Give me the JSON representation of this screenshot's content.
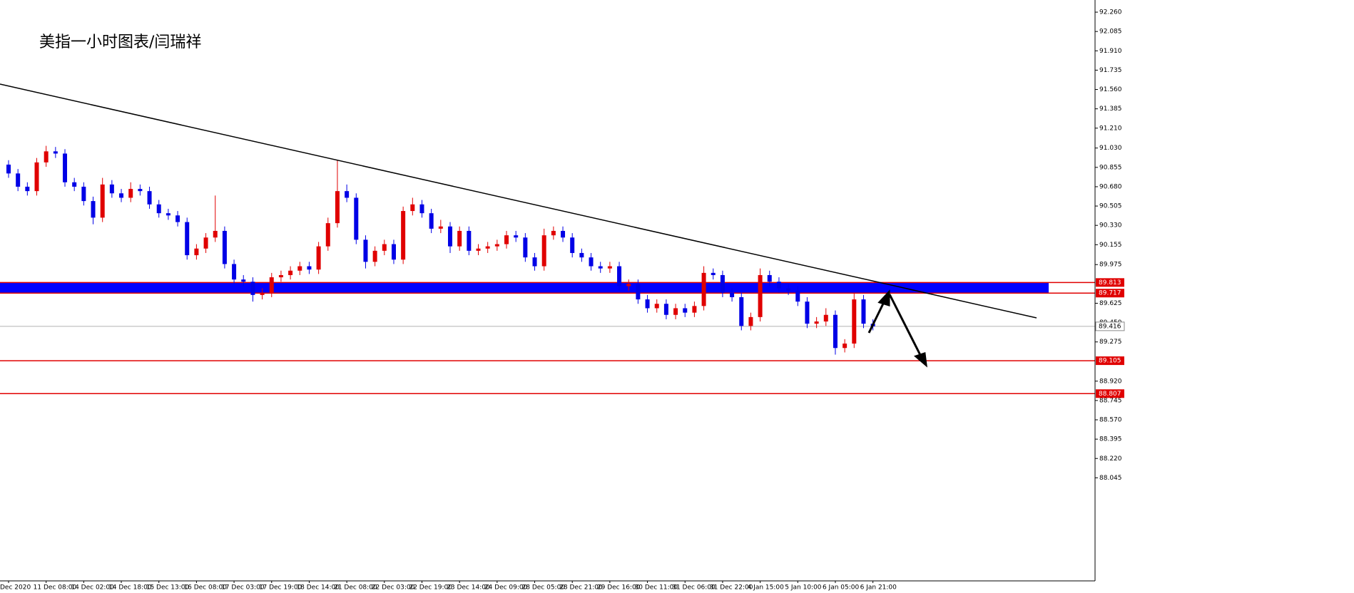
{
  "chart_data": {
    "type": "candlestick",
    "title": "美指一小时图表/闫瑞祥",
    "categories": [
      "Dec 2020",
      null,
      null,
      null,
      "11 Dec 08:00",
      null,
      null,
      null,
      "14 Dec 02:00",
      null,
      null,
      null,
      "14 Dec 18:00",
      null,
      null,
      null,
      "15 Dec 13:00",
      null,
      null,
      null,
      "16 Dec 08:00",
      null,
      null,
      null,
      "17 Dec 03:00",
      null,
      null,
      null,
      "17 Dec 19:00",
      null,
      null,
      null,
      "18 Dec 14:00",
      null,
      null,
      null,
      "21 Dec 08:00",
      null,
      null,
      null,
      "22 Dec 03:00",
      null,
      null,
      null,
      "22 Dec 19:00",
      null,
      null,
      null,
      "23 Dec 14:00",
      null,
      null,
      null,
      "24 Dec 09:00",
      null,
      null,
      null,
      "28 Dec 05:00",
      null,
      null,
      null,
      "28 Dec 21:00",
      null,
      null,
      null,
      "29 Dec 16:00",
      null,
      null,
      null,
      "30 Dec 11:00",
      null,
      null,
      null,
      "31 Dec 06:00",
      null,
      null,
      null,
      "31 Dec 22:00",
      null,
      null,
      null,
      "4 Jan 15:00",
      null,
      null,
      null,
      "5 Jan 10:00",
      null,
      null,
      null,
      "6 Jan 05:00",
      null,
      null,
      null,
      "6 Jan 21:00"
    ],
    "open": [
      90.88,
      90.8,
      90.68,
      90.64,
      90.9,
      91.0,
      90.98,
      90.72,
      90.68,
      90.55,
      90.4,
      90.7,
      90.62,
      90.58,
      90.66,
      90.64,
      90.52,
      90.44,
      90.42,
      90.36,
      90.06,
      90.12,
      90.22,
      90.28,
      89.98,
      89.84,
      89.82,
      89.7,
      89.72,
      89.86,
      89.88,
      89.92,
      89.96,
      89.93,
      90.14,
      90.35,
      90.64,
      90.58,
      90.2,
      90.0,
      90.1,
      90.16,
      90.02,
      90.46,
      90.52,
      90.44,
      90.3,
      90.32,
      90.14,
      90.28,
      90.1,
      90.12,
      90.14,
      90.16,
      90.24,
      90.22,
      90.04,
      89.96,
      90.24,
      90.28,
      90.22,
      90.08,
      90.04,
      89.96,
      89.94,
      89.96,
      89.78,
      89.8,
      89.66,
      89.58,
      89.62,
      89.52,
      89.58,
      89.54,
      89.6,
      89.9,
      89.88,
      89.72,
      89.68,
      89.42,
      89.5,
      89.88,
      89.82,
      89.76,
      89.74,
      89.64,
      89.44,
      89.46,
      89.52,
      89.22,
      89.26,
      89.66,
      89.44
    ],
    "high": [
      90.92,
      90.84,
      90.72,
      90.94,
      91.05,
      91.04,
      91.02,
      90.76,
      90.72,
      90.59,
      90.76,
      90.74,
      90.66,
      90.72,
      90.7,
      90.68,
      90.56,
      90.48,
      90.46,
      90.4,
      90.16,
      90.26,
      90.6,
      90.32,
      90.02,
      89.88,
      89.86,
      89.76,
      89.9,
      89.92,
      89.96,
      90.0,
      90.0,
      90.18,
      90.4,
      90.92,
      90.7,
      90.62,
      90.24,
      90.14,
      90.2,
      90.2,
      90.5,
      90.58,
      90.56,
      90.48,
      90.38,
      90.36,
      90.32,
      90.32,
      90.16,
      90.18,
      90.2,
      90.28,
      90.28,
      90.26,
      90.08,
      90.3,
      90.32,
      90.32,
      90.26,
      90.12,
      90.08,
      90.0,
      90.0,
      90.0,
      89.84,
      89.84,
      89.7,
      89.66,
      89.66,
      89.62,
      89.62,
      89.64,
      89.96,
      89.94,
      89.92,
      89.76,
      89.72,
      89.54,
      89.94,
      89.92,
      89.86,
      89.8,
      89.78,
      89.68,
      89.5,
      89.58,
      89.56,
      89.3,
      89.72,
      89.7,
      89.48
    ],
    "low": [
      90.76,
      90.64,
      90.6,
      90.6,
      90.86,
      90.94,
      90.68,
      90.64,
      90.51,
      90.34,
      90.36,
      90.58,
      90.54,
      90.54,
      90.6,
      90.48,
      90.4,
      90.38,
      90.32,
      90.02,
      90.02,
      90.08,
      90.18,
      89.94,
      89.8,
      89.78,
      89.64,
      89.66,
      89.68,
      89.82,
      89.84,
      89.88,
      89.89,
      89.89,
      90.1,
      90.31,
      90.54,
      90.16,
      89.94,
      89.96,
      90.06,
      89.98,
      89.98,
      90.42,
      90.4,
      90.26,
      90.26,
      90.08,
      90.1,
      90.06,
      90.06,
      90.08,
      90.1,
      90.12,
      90.18,
      90.0,
      89.92,
      89.92,
      90.2,
      90.18,
      90.04,
      90.0,
      89.92,
      89.9,
      89.9,
      89.74,
      89.74,
      89.62,
      89.54,
      89.54,
      89.48,
      89.48,
      89.5,
      89.5,
      89.56,
      89.84,
      89.68,
      89.64,
      89.38,
      89.38,
      89.46,
      89.78,
      89.72,
      89.7,
      89.6,
      89.4,
      89.4,
      89.42,
      89.16,
      89.18,
      89.22,
      89.4,
      89.38
    ],
    "close": [
      90.8,
      90.68,
      90.64,
      90.9,
      91.0,
      90.98,
      90.72,
      90.68,
      90.55,
      90.4,
      90.7,
      90.62,
      90.58,
      90.66,
      90.64,
      90.52,
      90.44,
      90.42,
      90.36,
      90.06,
      90.12,
      90.22,
      90.28,
      89.98,
      89.84,
      89.82,
      89.7,
      89.72,
      89.86,
      89.88,
      89.92,
      89.96,
      89.93,
      90.14,
      90.35,
      90.64,
      90.58,
      90.2,
      90.0,
      90.1,
      90.16,
      90.02,
      90.46,
      90.52,
      90.44,
      90.3,
      90.32,
      90.14,
      90.28,
      90.1,
      90.12,
      90.14,
      90.16,
      90.24,
      90.22,
      90.04,
      89.96,
      90.24,
      90.28,
      90.22,
      90.08,
      90.04,
      89.96,
      89.94,
      89.96,
      89.78,
      89.8,
      89.66,
      89.58,
      89.62,
      89.52,
      89.58,
      89.54,
      89.6,
      89.9,
      89.88,
      89.72,
      89.68,
      89.42,
      89.5,
      89.88,
      89.82,
      89.76,
      89.74,
      89.64,
      89.44,
      89.46,
      89.52,
      89.22,
      89.26,
      89.66,
      89.44,
      89.416
    ],
    "up_color": "#e00000",
    "down_color": "#0000e6",
    "ylim": [
      87.112,
      92.37
    ],
    "yticks": [
      {
        "value": 92.26,
        "label": "92.260"
      },
      {
        "value": 92.085,
        "label": "92.085"
      },
      {
        "value": 91.91,
        "label": "91.910"
      },
      {
        "value": 91.735,
        "label": "91.735"
      },
      {
        "value": 91.56,
        "label": "91.560"
      },
      {
        "value": 91.385,
        "label": "91.385"
      },
      {
        "value": 91.21,
        "label": "91.210"
      },
      {
        "value": 91.03,
        "label": "91.030"
      },
      {
        "value": 90.855,
        "label": "90.855"
      },
      {
        "value": 90.68,
        "label": "90.680"
      },
      {
        "value": 90.505,
        "label": "90.505"
      },
      {
        "value": 90.33,
        "label": "90.330"
      },
      {
        "value": 90.155,
        "label": "90.155"
      },
      89.975,
      89.625,
      {
        "value": 89.45,
        "label": "89.450"
      },
      89.275,
      {
        "value": 88.92,
        "label": "88.920"
      },
      88.745,
      {
        "value": 88.57,
        "label": "88.570"
      },
      88.395,
      {
        "value": 88.22,
        "label": "88.220"
      },
      88.045
    ],
    "levels": [
      89.813,
      89.717,
      89.105,
      88.807
    ],
    "level_color": "#e00000",
    "zone_color": "#0000ff",
    "last_price": 89.416,
    "last_price_color": "#b0b0b0"
  }
}
